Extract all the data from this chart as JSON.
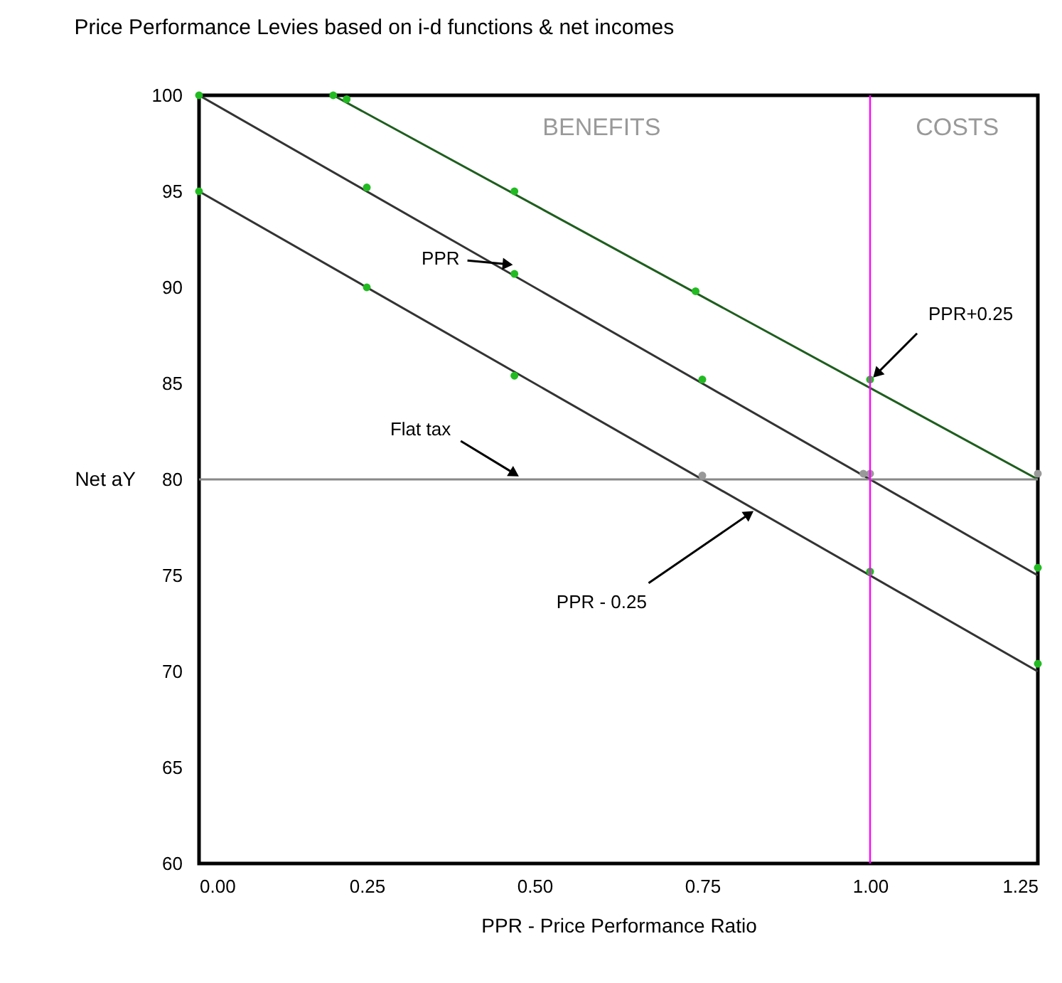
{
  "chart_data": {
    "type": "line",
    "title": "Price Performance Levies based on i-d functions & net incomes",
    "xlabel": "PPR - Price Performance Ratio",
    "ylabel": "Net aY",
    "xlim": [
      0,
      1.25
    ],
    "ylim": [
      60,
      100
    ],
    "xticks": [
      {
        "value": 0,
        "label": "0.00"
      },
      0.25,
      {
        "value": 0.5,
        "label": "0.50"
      },
      0.75,
      {
        "value": 1,
        "label": "1.00"
      },
      1.25
    ],
    "yticks": [
      60,
      65,
      70,
      75,
      80,
      85,
      90,
      95,
      100
    ],
    "grid": false,
    "marker": "circle",
    "line_style": "solid",
    "series": [
      {
        "color": "#1e5e1e",
        "marker": "none",
        "x": [
          0.2,
          1.25
        ],
        "values": [
          100,
          80
        ]
      },
      {
        "color": "#333333",
        "marker": "none",
        "x": [
          0,
          1.25
        ],
        "values": [
          100,
          75
        ]
      },
      {
        "color": "#333333",
        "marker": "none",
        "x": [
          0,
          1.25
        ],
        "values": [
          95,
          70
        ]
      },
      {
        "color": "#888888",
        "marker": "none",
        "x": [
          0,
          1.25
        ],
        "values": [
          80,
          80
        ]
      },
      {
        "type": "scatter",
        "color": "#22bb22",
        "x": [
          0.2,
          0.22,
          0.47,
          0.74,
          1.0,
          0,
          0.25,
          0.47,
          0.75,
          1.25,
          0,
          0.25,
          0.47,
          1.0,
          1.25
        ],
        "values": [
          100,
          99.8,
          95,
          89.8,
          85.2,
          100,
          95.2,
          90.7,
          85.2,
          75.4,
          95,
          90,
          85.4,
          75.2,
          70.4
        ]
      },
      {
        "type": "scatter",
        "color": "#999999",
        "x": [
          0.75,
          0.99,
          1.0,
          1.25
        ],
        "values": [
          80.2,
          80.3,
          80.3,
          80.3
        ]
      }
    ],
    "ref_lines": [
      {
        "axis": "x",
        "value": 1.0,
        "color": "#ff00ff"
      }
    ],
    "annotations": [
      {
        "text": "PPR",
        "x": 0.46,
        "y": 91.2
      },
      {
        "text": "PPR+0.25",
        "x": 1.01,
        "y": 85.5
      },
      {
        "text": "Flat tax",
        "x": 0.47,
        "y": 80.3
      },
      {
        "text": "PPR - 0.25",
        "x": 0.82,
        "y": 78.2
      },
      "BENEFITS",
      "COSTS"
    ]
  }
}
